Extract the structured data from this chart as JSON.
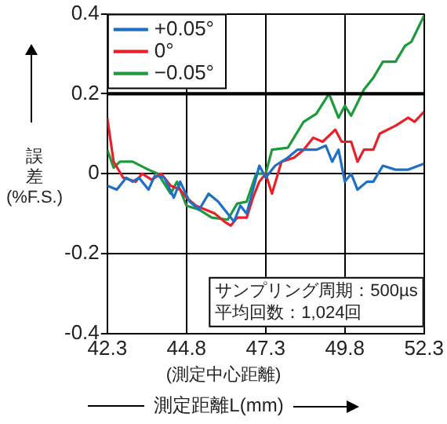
{
  "chart_data": {
    "type": "line",
    "xlabel": "測定距離L(mm)",
    "ylabel": "誤差(%F.S.)",
    "annotations": [
      "(測定中心距離)",
      "サンプリング周期：500µs",
      "平均回数：1,024回"
    ],
    "series": [
      {
        "name": "+0.05°",
        "color": "#1f6fc4",
        "x": [
          42.3,
          42.6,
          42.9,
          43.1,
          43.3,
          43.6,
          43.8,
          44.1,
          44.4,
          44.6,
          44.9,
          45.2,
          45.5,
          45.8,
          46.1,
          46.3,
          46.5,
          46.7,
          46.9,
          47.1,
          47.3,
          47.6,
          48.0,
          48.3,
          48.6,
          48.9,
          49.2,
          49.4,
          49.6,
          49.8,
          50.0,
          50.2,
          50.5,
          50.7,
          51.0,
          51.4,
          51.8,
          52.3
        ],
        "values": [
          -0.03,
          -0.04,
          -0.01,
          -0.02,
          -0.01,
          -0.04,
          -0.005,
          -0.01,
          -0.06,
          -0.02,
          -0.07,
          -0.09,
          -0.05,
          -0.07,
          -0.1,
          -0.12,
          -0.08,
          -0.1,
          -0.04,
          0.02,
          -0.01,
          0.02,
          0.04,
          0.06,
          0.06,
          0.06,
          0.07,
          0.03,
          0.06,
          -0.02,
          0.0,
          -0.04,
          -0.02,
          -0.02,
          0.02,
          0.01,
          0.01,
          0.025
        ]
      },
      {
        "name": "0°",
        "color": "#e8202a",
        "x": [
          42.3,
          42.5,
          42.8,
          43.2,
          43.4,
          43.7,
          44.0,
          44.3,
          44.6,
          44.8,
          45.1,
          45.4,
          45.7,
          46.0,
          46.2,
          46.4,
          46.7,
          46.9,
          47.1,
          47.3,
          47.5,
          47.8,
          48.2,
          48.5,
          48.8,
          49.1,
          49.5,
          49.7,
          50.0,
          50.2,
          50.4,
          50.7,
          50.9,
          51.4,
          51.8,
          52.0,
          52.3
        ],
        "values": [
          0.14,
          0.03,
          -0.01,
          -0.02,
          0.0,
          -0.015,
          0.0,
          -0.03,
          -0.04,
          -0.06,
          -0.08,
          -0.09,
          -0.1,
          -0.12,
          -0.13,
          -0.11,
          -0.11,
          -0.06,
          -0.02,
          0.0,
          -0.05,
          0.03,
          0.04,
          0.06,
          0.09,
          0.08,
          0.11,
          0.08,
          0.08,
          0.03,
          0.06,
          0.06,
          0.1,
          0.12,
          0.14,
          0.13,
          0.155
        ]
      },
      {
        "name": "−0.05°",
        "color": "#1e9a3c",
        "x": [
          42.3,
          42.5,
          42.7,
          43.1,
          43.6,
          43.9,
          44.3,
          44.5,
          44.8,
          45.2,
          45.6,
          46.1,
          46.4,
          46.7,
          47.0,
          47.3,
          47.5,
          48.0,
          48.5,
          48.9,
          49.3,
          49.6,
          49.8,
          50.0,
          50.4,
          50.7,
          51.0,
          51.4,
          51.7,
          51.9,
          52.3
        ],
        "values": [
          0.06,
          0.015,
          0.03,
          0.03,
          0.01,
          0.0,
          -0.05,
          -0.02,
          -0.08,
          -0.09,
          -0.11,
          -0.115,
          -0.075,
          -0.07,
          0.0,
          0.0,
          0.06,
          0.065,
          0.13,
          0.15,
          0.2,
          0.14,
          0.17,
          0.145,
          0.21,
          0.24,
          0.28,
          0.28,
          0.32,
          0.33,
          0.395
        ]
      }
    ],
    "xlim": [
      42.3,
      52.3
    ],
    "xticks": [
      42.3,
      44.8,
      47.3,
      49.8,
      52.3
    ],
    "ylim": [
      -0.4,
      0.4
    ],
    "yticks": [
      -0.4,
      -0.2,
      0,
      0.2,
      0.4
    ],
    "ref_lines": [
      {
        "axis": "y",
        "value": 0.2,
        "color": "#000000"
      }
    ],
    "grid": true,
    "legend": "top left",
    "marker": "none",
    "line_style": "solid"
  }
}
